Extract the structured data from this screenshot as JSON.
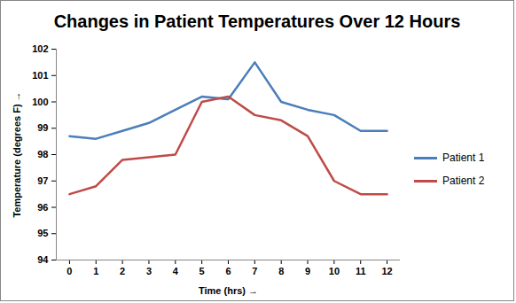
{
  "chart_data": {
    "type": "line",
    "title": "Changes in Patient Temperatures Over 12 Hours",
    "x_label": "Time (hrs)",
    "y_label": "Temperature (degrees F)",
    "x": [
      0,
      1,
      2,
      3,
      4,
      5,
      6,
      7,
      8,
      9,
      10,
      11,
      12
    ],
    "xlim": [
      -0.5,
      12.5
    ],
    "xticks": [
      0,
      1,
      2,
      3,
      4,
      5,
      6,
      7,
      8,
      9,
      10,
      11,
      12
    ],
    "ylim": [
      94,
      102
    ],
    "yticks": [
      94,
      95,
      96,
      97,
      98,
      99,
      100,
      101,
      102
    ],
    "grid": false,
    "legend": "right",
    "series": [
      {
        "name": "Patient 1",
        "color": "#4a7ebb",
        "values": [
          98.7,
          98.6,
          98.9,
          99.2,
          99.7,
          100.2,
          100.1,
          101.5,
          100.0,
          99.7,
          99.5,
          98.9,
          98.9
        ]
      },
      {
        "name": "Patient 2",
        "color": "#be4b48",
        "values": [
          96.5,
          96.8,
          97.8,
          97.9,
          98.0,
          100.0,
          100.2,
          99.5,
          99.3,
          98.7,
          97.0,
          96.5,
          96.5
        ]
      }
    ]
  }
}
